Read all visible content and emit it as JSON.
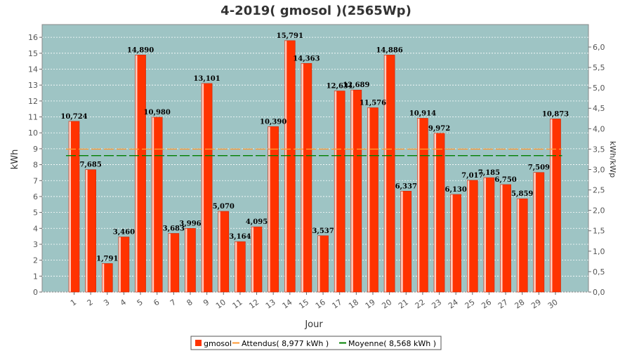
{
  "chart_data": {
    "type": "bar",
    "title": "4-2019( gmosol )(2565Wp)",
    "xlabel": "Jour",
    "ylabel": "kWh",
    "ylabel_right": "kWh/kWp",
    "ylim": [
      0,
      16.8
    ],
    "ylim_right": [
      0,
      6.55
    ],
    "yticks": [
      "0",
      "1",
      "2",
      "3",
      "4",
      "5",
      "6",
      "7",
      "8",
      "9",
      "10",
      "11",
      "12",
      "13",
      "14",
      "15",
      "16"
    ],
    "yticks_right": [
      "0,0",
      "0,5",
      "1,0",
      "1,5",
      "2,0",
      "2,5",
      "3,0",
      "3,5",
      "4,0",
      "4,5",
      "5,0",
      "5,5",
      "6,0"
    ],
    "categories": [
      "1",
      "2",
      "3",
      "4",
      "5",
      "6",
      "7",
      "8",
      "9",
      "10",
      "11",
      "12",
      "13",
      "14",
      "15",
      "16",
      "17",
      "18",
      "19",
      "20",
      "21",
      "22",
      "23",
      "24",
      "25",
      "26",
      "27",
      "28",
      "29",
      "30"
    ],
    "values": [
      10.724,
      7.685,
      1.791,
      3.46,
      14.89,
      10.98,
      3.683,
      3.996,
      13.101,
      5.07,
      3.164,
      4.095,
      10.39,
      15.791,
      14.363,
      3.537,
      12.631,
      12.689,
      11.576,
      14.886,
      6.337,
      10.914,
      9.972,
      6.13,
      7.017,
      7.185,
      6.75,
      5.859,
      7.509,
      10.873
    ],
    "value_labels": [
      "10,724",
      "7,685",
      "1,791",
      "3,460",
      "14,890",
      "10,980",
      "3,683",
      "3,996",
      "13,101",
      "5,070",
      "3,164",
      "4,095",
      "10,390",
      "15,791",
      "14,363",
      "3,537",
      "12,631",
      "12,689",
      "11,576",
      "14,886",
      "6,337",
      "10,914",
      "9,972",
      "6,130",
      "7,017",
      "7,185",
      "6,750",
      "5,859",
      "7,509",
      "10,873"
    ],
    "reference_lines": [
      {
        "name": "Attendus( 8,977 kWh )",
        "value": 8.977,
        "color": "#ff9933",
        "style": "dashed"
      },
      {
        "name": "Moyenne( 8,568 kWh )",
        "value": 8.568,
        "color": "#008000",
        "style": "dashed"
      }
    ],
    "series": [
      {
        "name": "gmosol",
        "color": "#ff3300"
      }
    ],
    "grid": true,
    "legend_position": "bottom",
    "colors": {
      "plot_background": "#9ec4c4",
      "grid": "#ffffff",
      "bar": "#ff3300",
      "bar_highlight": "#ffffff"
    }
  }
}
